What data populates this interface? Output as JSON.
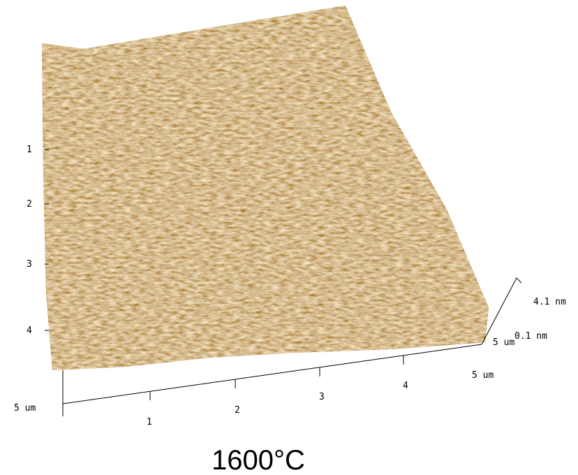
{
  "axes": {
    "left_ticks": [
      "1",
      "2",
      "3",
      "4"
    ],
    "bottom_start": "5 um",
    "bottom_ticks": [
      "1",
      "2",
      "3",
      "4"
    ],
    "bottom_end": "5 um",
    "right_depth": "5 um",
    "z_max": "4.1 nm",
    "z_min": "0.1 nm"
  },
  "caption": "1600°C"
}
